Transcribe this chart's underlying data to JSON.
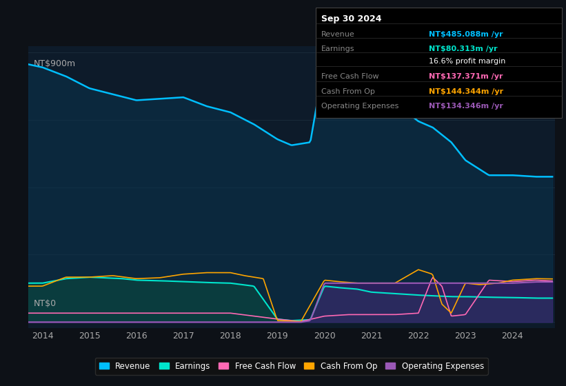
{
  "background_color": "#0d1117",
  "plot_bg_color": "#0d1b2a",
  "ylabel_top": "NT$900m",
  "ylabel_bottom": "NT$0",
  "revenue_color": "#00bfff",
  "earnings_color": "#00e5cc",
  "fcf_color": "#ff69b4",
  "cashfromop_color": "#ffa500",
  "opex_color": "#9b59b6",
  "legend_items": [
    {
      "label": "Revenue",
      "color": "#00bfff"
    },
    {
      "label": "Earnings",
      "color": "#00e5cc"
    },
    {
      "label": "Free Cash Flow",
      "color": "#ff69b4"
    },
    {
      "label": "Cash From Op",
      "color": "#ffa500"
    },
    {
      "label": "Operating Expenses",
      "color": "#9b59b6"
    }
  ],
  "info_box": {
    "date": "Sep 30 2024",
    "revenue_label": "Revenue",
    "revenue_value": "NT$485.088m",
    "revenue_color": "#00bfff",
    "earnings_label": "Earnings",
    "earnings_value": "NT$80.313m",
    "earnings_color": "#00e5cc",
    "margin_text": "16.6% profit margin",
    "fcf_label": "Free Cash Flow",
    "fcf_value": "NT$137.371m",
    "fcf_color": "#ff69b4",
    "cashop_label": "Cash From Op",
    "cashop_value": "NT$144.344m",
    "cashop_color": "#ffa500",
    "opex_label": "Operating Expenses",
    "opex_value": "NT$134.346m",
    "opex_color": "#9b59b6"
  }
}
